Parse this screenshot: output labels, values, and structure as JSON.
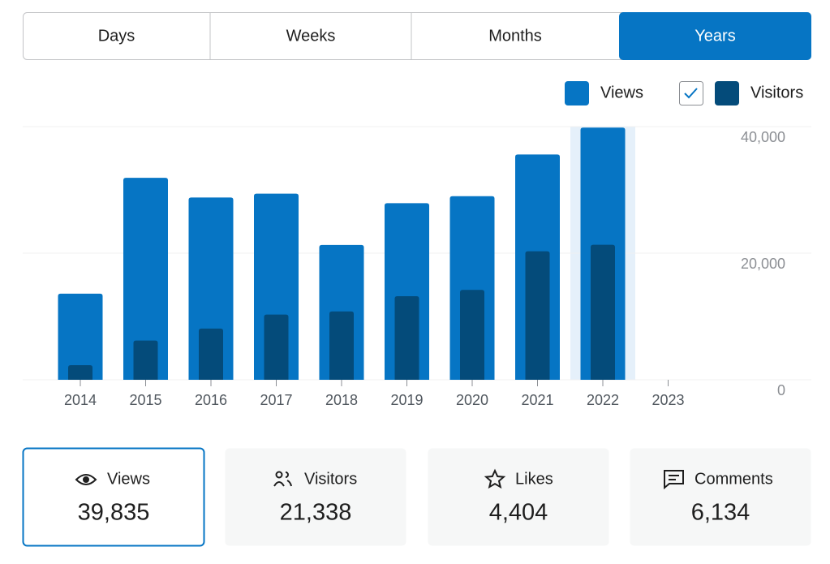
{
  "tabs": {
    "items": [
      "Days",
      "Weeks",
      "Months",
      "Years"
    ],
    "selected_index": 3
  },
  "chart_data": {
    "type": "bar",
    "categories": [
      "2014",
      "2015",
      "2016",
      "2017",
      "2018",
      "2019",
      "2020",
      "2021",
      "2022",
      "2023"
    ],
    "series": [
      {
        "name": "Views",
        "color": "#0675c4",
        "values": [
          13600,
          31900,
          28800,
          29400,
          21300,
          27900,
          29000,
          35600,
          39835,
          null
        ]
      },
      {
        "name": "Visitors",
        "color": "#044b7a",
        "values": [
          2300,
          6200,
          8100,
          10300,
          10800,
          13200,
          14200,
          20300,
          21338,
          null
        ]
      }
    ],
    "ylim": [
      0,
      40000
    ],
    "yticks": [
      0,
      {
        "value": 20000,
        "label": "20,000"
      },
      {
        "value": 40000,
        "label": "40,000"
      }
    ],
    "grid": true,
    "highlight_index": 8,
    "legend": "top-right"
  },
  "cards": [
    {
      "label": "Views",
      "value": "39,835"
    },
    {
      "label": "Visitors",
      "value": "21,338"
    },
    {
      "label": "Likes",
      "value": "4,404"
    },
    {
      "label": "Comments",
      "value": "6,134"
    }
  ],
  "selected_card": 0
}
